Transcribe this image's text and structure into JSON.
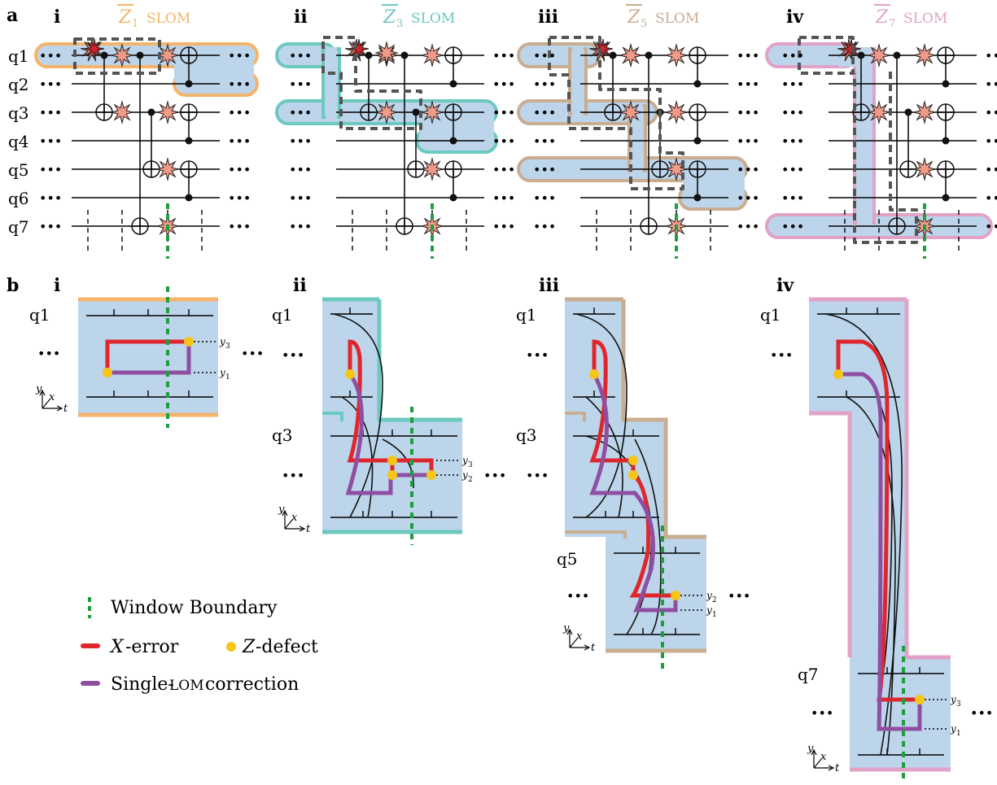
{
  "colors": {
    "orange": "#F5B46B",
    "teal": "#6CC9C0",
    "tan": "#C9AD90",
    "pink": "#E0A2C7",
    "blue_fill": "#BDD5EA",
    "red_path": "#E0262D",
    "purple_path": "#8E4FA3",
    "defect": "#F5C518",
    "boundary_green": "#1E9E3E",
    "star_fill": "#F09A88",
    "star_dark": "#D8202A",
    "dash_box": "#555555"
  },
  "panel_a": {
    "label": "a",
    "qubits": [
      "q1",
      "q2",
      "q3",
      "q4",
      "q5",
      "q6",
      "q7"
    ],
    "ellipsis": "•••",
    "subpanels": [
      {
        "roman": "i",
        "op_main": "Z",
        "op_sub": "1",
        "op_suffix": "SLOM"
      },
      {
        "roman": "ii",
        "op_main": "Z",
        "op_sub": "3",
        "op_suffix": "SLOM"
      },
      {
        "roman": "iii",
        "op_main": "Z",
        "op_sub": "5",
        "op_suffix": "SLOM"
      },
      {
        "roman": "iv",
        "op_main": "Z",
        "op_sub": "7",
        "op_suffix": "SLOM"
      }
    ]
  },
  "panel_b": {
    "label": "b",
    "romans": [
      "i",
      "ii",
      "iii",
      "iv"
    ],
    "row_labels": {
      "q1": "q1",
      "q3": "q3",
      "q5": "q5",
      "q7": "q7"
    },
    "ellipsis": "•••",
    "y_labels": {
      "y1": "y",
      "y2": "y",
      "y3": "y",
      "s1": "1",
      "s2": "2",
      "s3": "3"
    },
    "axes": {
      "y": "y",
      "x": "x",
      "t": "t"
    }
  },
  "legend": {
    "window_boundary": "Window Boundary",
    "x_error_italic": "X",
    "x_error_rest": "-error",
    "z_defect_italic": "Z",
    "z_defect_rest": "-defect",
    "single_lom_prefix": "Single-",
    "single_lom_caps": "LOM",
    "single_lom_suffix": " correction"
  }
}
